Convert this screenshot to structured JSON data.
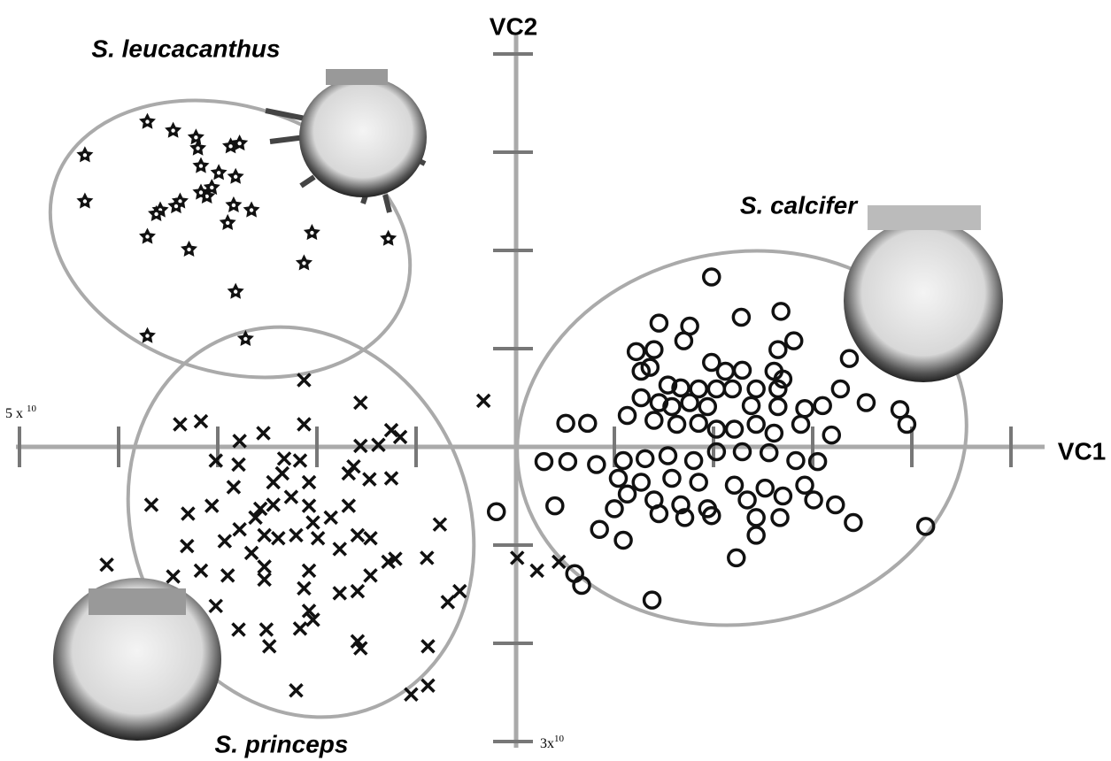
{
  "chart_data": {
    "type": "scatter",
    "x_label": "VC1",
    "y_label": "VC2",
    "x_end_label": "5 x",
    "x_end_label_exp": "10",
    "y_end_label": "3x",
    "y_end_label_exp": "10",
    "xlim": [
      -5,
      5
    ],
    "ylim": [
      -3,
      4
    ],
    "xticks": [
      -5,
      -4,
      -3,
      -2,
      -1,
      1,
      2,
      3,
      4,
      5
    ],
    "yticks": [
      -3,
      -2,
      -1,
      1,
      2,
      3,
      4
    ],
    "series": [
      {
        "name": "S. leucacanthus",
        "marker": "star",
        "color": "#111111",
        "x": [
          -4.34,
          -4.34,
          -3.71,
          -3.45,
          -3.22,
          -3.2,
          -2.87,
          -2.78,
          -3.17,
          -2.99,
          -2.82,
          -3.06,
          -3.11,
          -3.17,
          -3.38,
          -3.42,
          -3.58,
          -3.62,
          -2.84,
          -2.66,
          -2.9,
          -3.71,
          -3.29,
          -2.05,
          -1.28,
          -2.13,
          -2.82,
          -3.71,
          -2.72
        ],
        "y": [
          2.97,
          2.5,
          3.31,
          3.22,
          3.15,
          3.04,
          3.06,
          3.09,
          2.86,
          2.79,
          2.75,
          2.64,
          2.55,
          2.59,
          2.5,
          2.45,
          2.41,
          2.37,
          2.46,
          2.41,
          2.28,
          2.14,
          2.01,
          2.18,
          2.12,
          1.87,
          1.58,
          1.13,
          1.1
        ]
      },
      {
        "name": "S. princeps",
        "marker": "cross",
        "color": "#111111",
        "x": [
          -4.12,
          -3.67,
          -3.38,
          -3.17,
          -3.02,
          -2.78,
          -2.54,
          -2.13,
          -2.13,
          -1.56,
          -1.25,
          -1.16,
          -1.56,
          -1.38,
          -2.33,
          -2.17,
          -2.79,
          -2.84,
          -3.06,
          -3.3,
          -3.31,
          -3.17,
          -3.45,
          -2.93,
          -2.9,
          -3.02,
          -2.79,
          -2.51,
          -2.48,
          -2.08,
          -2.17,
          -2.04,
          -1.59,
          -1.56,
          -0.88,
          -0.88,
          -1.05,
          -2.21,
          -0.68,
          -0.56,
          -0.76,
          -0.89,
          -1.28,
          -1.21,
          -1.46,
          -1.59,
          -1.77,
          -2.13,
          -2.08,
          -2.53,
          -2.53,
          -2.66,
          -2.78,
          -2.62,
          -2.44,
          -2.26,
          -2.08,
          -2.04,
          -1.86,
          -1.68,
          -1.59,
          -1.46,
          -1.77,
          -1.99,
          -2.21,
          -2.39,
          -2.53,
          -2.44,
          -2.08,
          -1.68,
          -1.47,
          -1.25,
          -1.63,
          -2.35,
          -2.57,
          -0.32,
          0.02,
          0.22,
          0.44
        ],
        "y": [
          -1.2,
          -0.59,
          0.23,
          0.26,
          -0.14,
          0.06,
          0.14,
          0.23,
          0.68,
          0.45,
          0.17,
          0.1,
          0.01,
          0.02,
          -0.12,
          -0.14,
          -0.18,
          -0.41,
          -0.6,
          -0.68,
          -1.01,
          -1.26,
          -1.32,
          -0.96,
          -1.31,
          -1.62,
          -1.86,
          -1.86,
          -2.03,
          -1.67,
          -1.85,
          -1.76,
          -1.98,
          -2.05,
          -2.03,
          -2.43,
          -2.52,
          -2.48,
          -1.58,
          -1.47,
          -0.79,
          -1.13,
          -1.17,
          -1.14,
          -1.31,
          -1.47,
          -1.49,
          -1.44,
          -1.26,
          -1.35,
          -1.22,
          -1.08,
          -0.84,
          -0.72,
          -0.59,
          -0.51,
          -0.6,
          -0.77,
          -0.72,
          -0.6,
          -0.9,
          -0.93,
          -1.04,
          -0.93,
          -0.9,
          -0.93,
          -0.9,
          -0.36,
          -0.36,
          -0.27,
          -0.33,
          -0.32,
          -0.2,
          -0.27,
          -0.63,
          0.47,
          -1.13,
          -1.26,
          -1.17
        ]
      },
      {
        "name": "S. calcifer",
        "marker": "circle",
        "color": "#111111",
        "x": [
          1.98,
          1.45,
          1.76,
          2.28,
          2.68,
          1.7,
          2.81,
          1.22,
          1.4,
          2.65,
          3.37,
          1.27,
          1.36,
          1.98,
          2.12,
          2.29,
          2.61,
          2.7,
          1.54,
          1.67,
          1.85,
          2.03,
          2.19,
          2.43,
          2.65,
          3.28,
          3.54,
          3.88,
          3.95,
          1.27,
          1.45,
          1.58,
          1.76,
          1.94,
          2.38,
          2.65,
          2.92,
          3.1,
          0.51,
          0.73,
          1.13,
          1.4,
          1.63,
          1.85,
          2.03,
          2.21,
          2.43,
          2.61,
          2.88,
          3.19,
          0.29,
          0.53,
          0.82,
          1.09,
          1.31,
          1.54,
          1.8,
          2.03,
          2.29,
          2.56,
          2.83,
          3.05,
          1.04,
          1.27,
          1.58,
          1.85,
          2.21,
          2.52,
          2.92,
          1.13,
          1.4,
          1.67,
          1.94,
          2.34,
          2.7,
          3.01,
          3.23,
          1.0,
          1.45,
          1.71,
          1.98,
          2.43,
          3.41,
          0.4,
          0.85,
          1.09,
          2.43,
          2.67,
          4.14,
          -0.19,
          0.6,
          0.67,
          2.23,
          1.38
        ],
        "y": [
          1.73,
          1.26,
          1.23,
          1.32,
          1.38,
          1.08,
          1.08,
          0.97,
          0.99,
          0.99,
          0.9,
          0.77,
          0.81,
          0.86,
          0.77,
          0.78,
          0.77,
          0.69,
          0.63,
          0.6,
          0.59,
          0.59,
          0.59,
          0.59,
          0.59,
          0.59,
          0.45,
          0.38,
          0.23,
          0.5,
          0.45,
          0.41,
          0.45,
          0.41,
          0.42,
          0.41,
          0.39,
          0.42,
          0.24,
          0.24,
          0.32,
          0.27,
          0.23,
          0.24,
          0.18,
          0.18,
          0.23,
          0.14,
          0.23,
          0.12,
          -0.15,
          -0.15,
          -0.18,
          -0.14,
          -0.12,
          -0.09,
          -0.14,
          -0.05,
          -0.05,
          -0.06,
          -0.14,
          -0.15,
          -0.32,
          -0.36,
          -0.32,
          -0.36,
          -0.39,
          -0.42,
          -0.39,
          -0.48,
          -0.54,
          -0.59,
          -0.63,
          -0.54,
          -0.5,
          -0.54,
          -0.59,
          -0.63,
          -0.68,
          -0.72,
          -0.7,
          -0.72,
          -0.77,
          -0.6,
          -0.84,
          -0.95,
          -0.9,
          -0.72,
          -0.81,
          -0.66,
          -1.29,
          -1.41,
          -1.13,
          -1.56
        ]
      }
    ]
  }
}
